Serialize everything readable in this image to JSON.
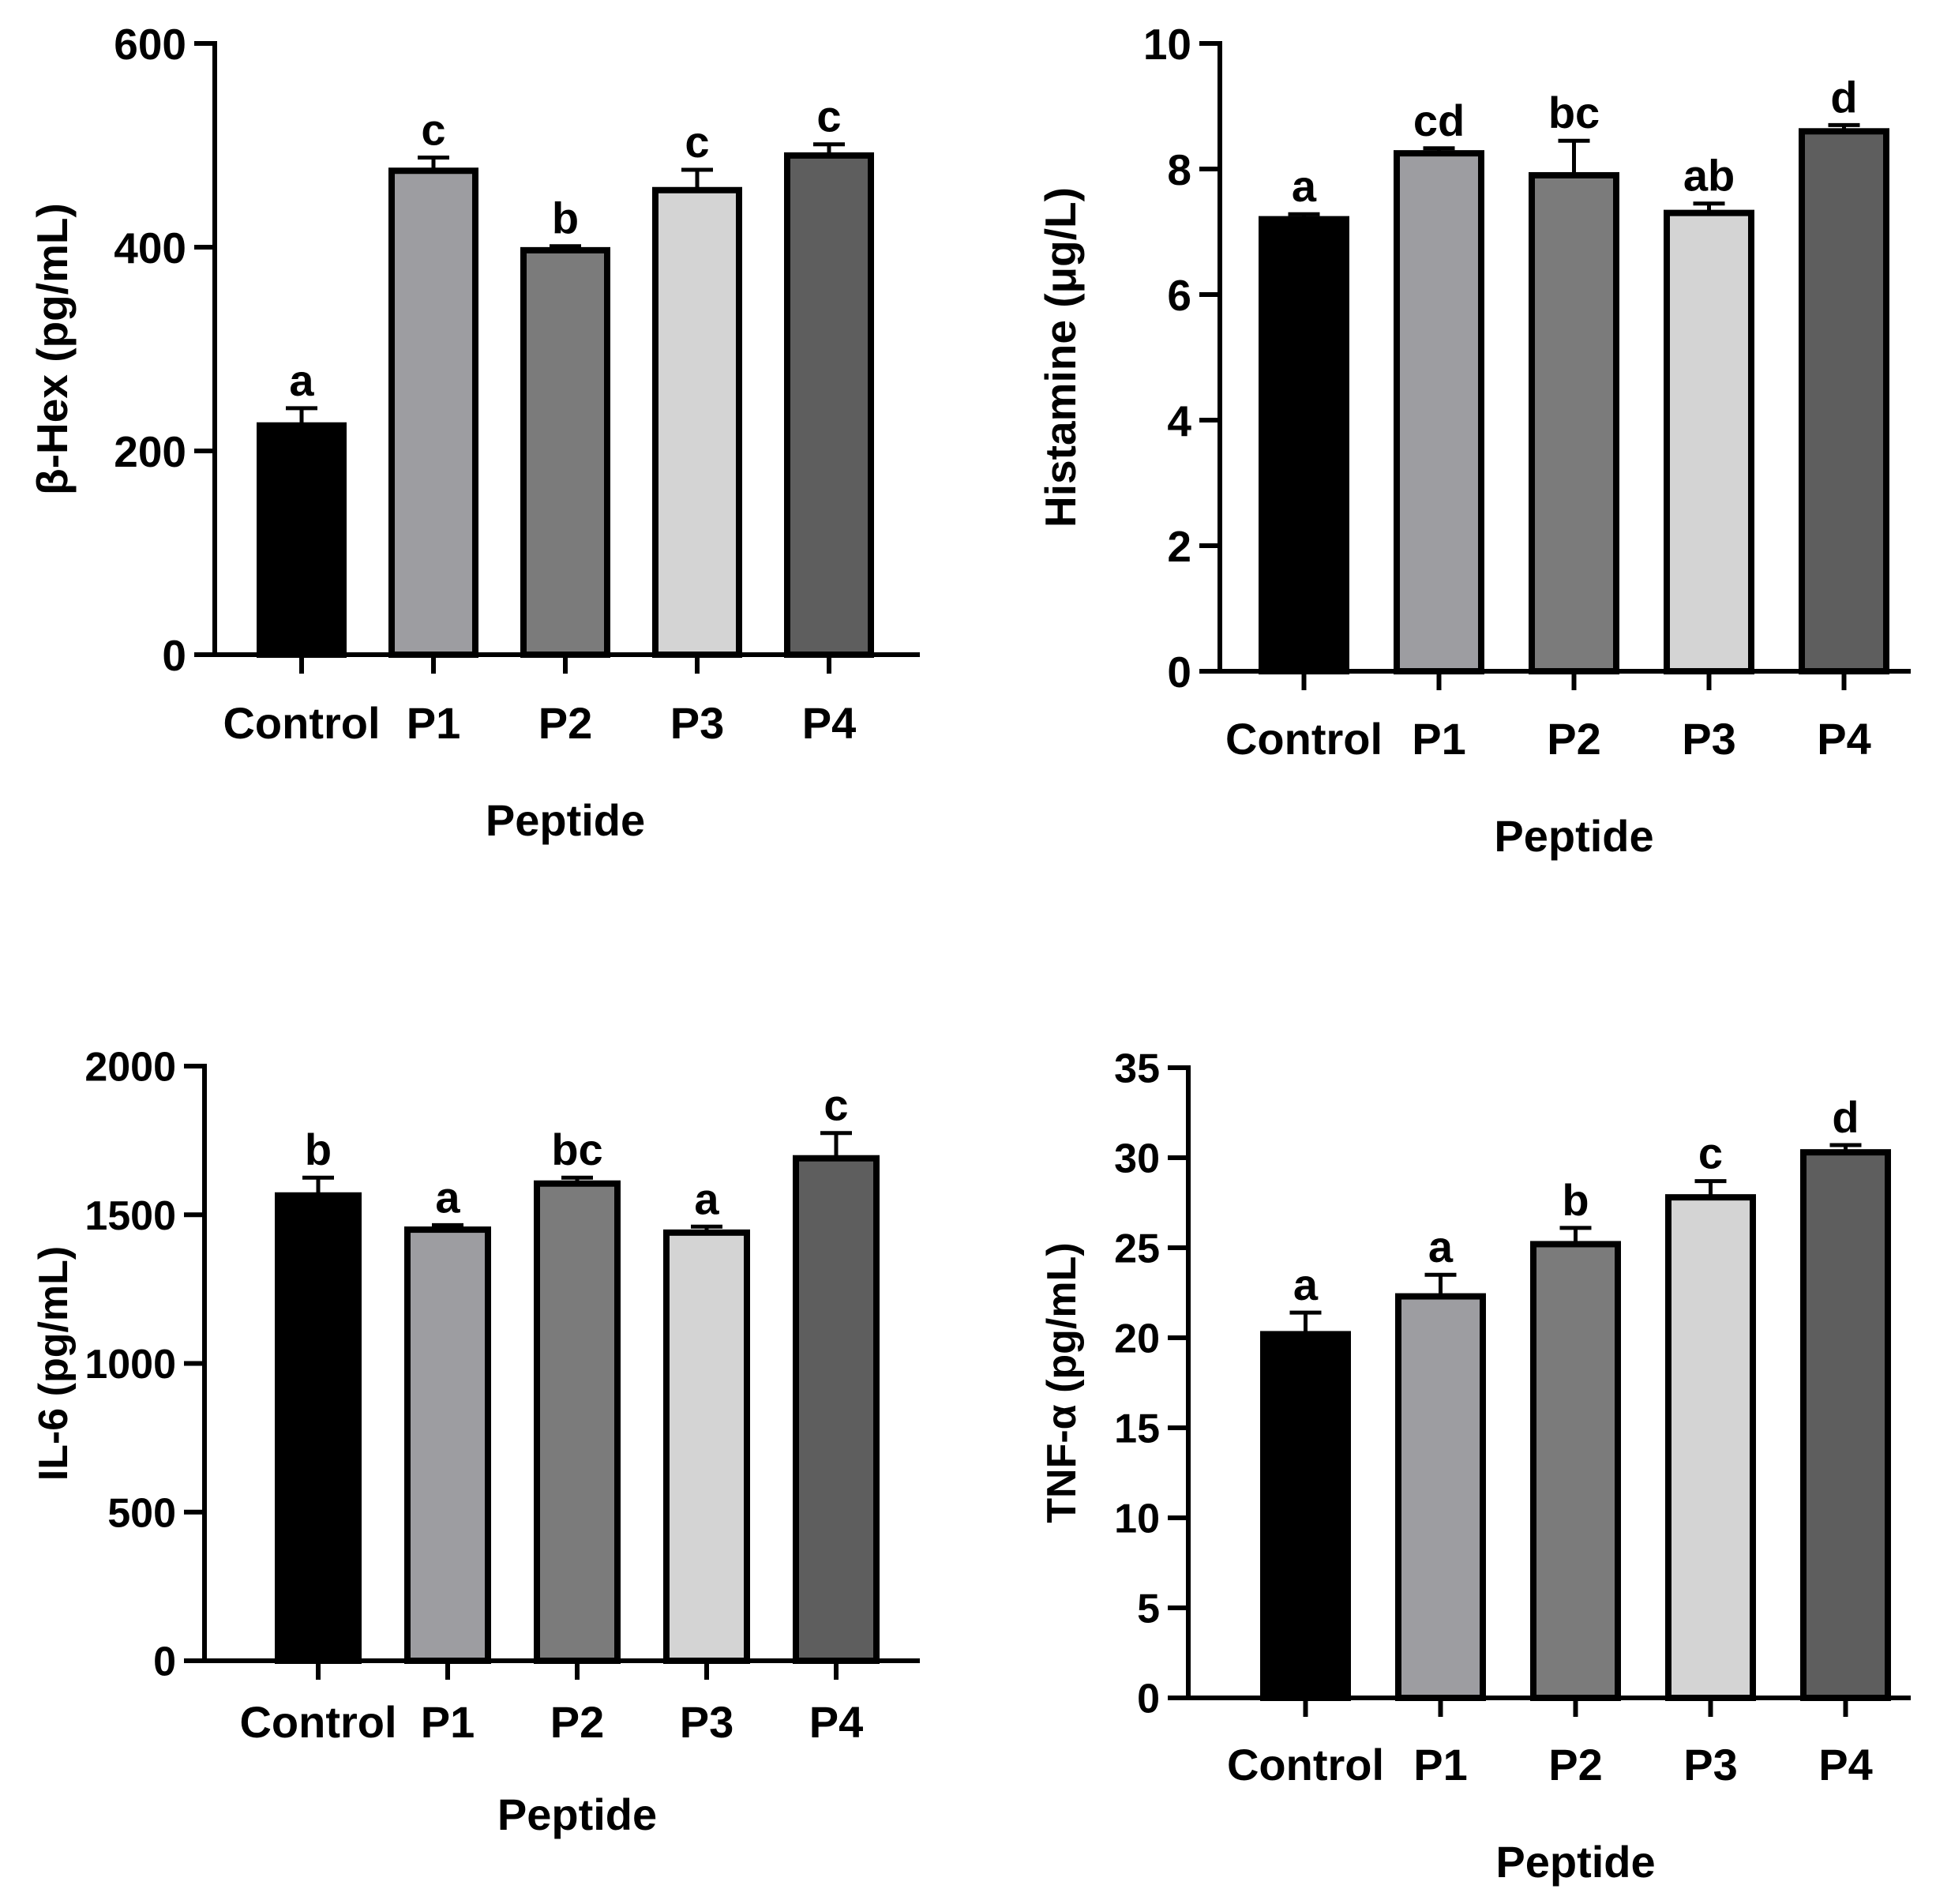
{
  "chart_data": [
    {
      "type": "bar",
      "title": "",
      "xlabel": "Peptide",
      "ylabel": "β-Hex (pg/mL)",
      "categories": [
        "Control",
        "P1",
        "P2",
        "P3",
        "P4"
      ],
      "values": [
        225,
        475,
        397,
        456,
        490
      ],
      "errors": [
        17,
        13,
        4,
        20,
        11
      ],
      "letters": [
        "a",
        "c",
        "b",
        "c",
        "c"
      ],
      "ylim": [
        0,
        600
      ],
      "yticks": [
        0,
        200,
        400,
        600
      ],
      "bar_colors": [
        "#000000",
        "#9d9da1",
        "#7b7b7b",
        "#d4d4d4",
        "#5e5e5e"
      ],
      "grid": false
    },
    {
      "type": "bar",
      "title": "",
      "xlabel": "Peptide",
      "ylabel": "Histamine (μg/L)",
      "categories": [
        "Control",
        "P1",
        "P2",
        "P3",
        "P4"
      ],
      "values": [
        7.2,
        8.25,
        7.9,
        7.3,
        8.6
      ],
      "errors": [
        0.08,
        0.08,
        0.55,
        0.15,
        0.1
      ],
      "letters": [
        "a",
        "cd",
        "bc",
        "ab",
        "d"
      ],
      "ylim": [
        0,
        10
      ],
      "yticks": [
        0,
        2,
        4,
        6,
        8,
        10
      ],
      "bar_colors": [
        "#000000",
        "#9d9da1",
        "#7b7b7b",
        "#d4d4d4",
        "#5e5e5e"
      ],
      "grid": false
    },
    {
      "type": "bar",
      "title": "",
      "xlabel": "Peptide",
      "ylabel": "IL-6 (pg/mL)",
      "categories": [
        "Control",
        "P1",
        "P2",
        "P3",
        "P4"
      ],
      "values": [
        1565,
        1450,
        1605,
        1440,
        1690
      ],
      "errors": [
        60,
        15,
        20,
        20,
        85
      ],
      "letters": [
        "b",
        "a",
        "bc",
        "a",
        "c"
      ],
      "ylim": [
        0,
        2000
      ],
      "yticks": [
        0,
        500,
        1000,
        1500,
        2000
      ],
      "bar_colors": [
        "#000000",
        "#9d9da1",
        "#7b7b7b",
        "#d4d4d4",
        "#5e5e5e"
      ],
      "grid": false
    },
    {
      "type": "bar",
      "title": "",
      "xlabel": "Peptide",
      "ylabel": "TNF-α (pg/mL)",
      "categories": [
        "Control",
        "P1",
        "P2",
        "P3",
        "P4"
      ],
      "values": [
        20.2,
        22.3,
        25.2,
        27.8,
        30.3
      ],
      "errors": [
        1.2,
        1.2,
        0.9,
        0.9,
        0.4
      ],
      "letters": [
        "a",
        "a",
        "b",
        "c",
        "d"
      ],
      "ylim": [
        0,
        35
      ],
      "yticks": [
        0,
        5,
        10,
        15,
        20,
        25,
        30,
        35
      ],
      "bar_colors": [
        "#000000",
        "#9d9da1",
        "#7b7b7b",
        "#d4d4d4",
        "#5e5e5e"
      ],
      "grid": false
    }
  ]
}
